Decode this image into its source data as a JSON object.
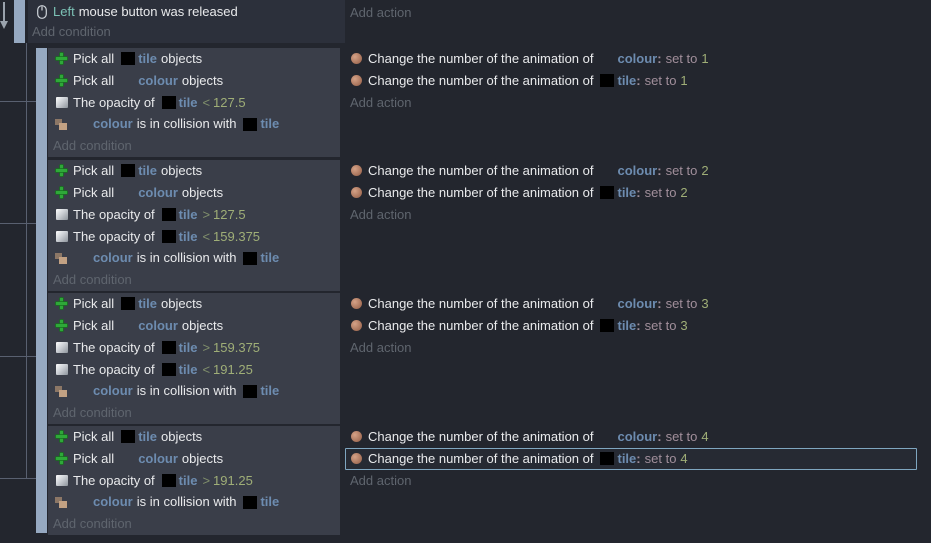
{
  "colors": {
    "page_bg": "#23262e",
    "condition_block_bg": "#3a3e49",
    "main_event_bg": "#2c303b",
    "indent_bar": "#96a9c1",
    "object_name": "#6d8cb0",
    "number": "#9fae77",
    "keyword": "#7cc2b6",
    "set_to": "#a18f9b",
    "muted_label": "#5f656e",
    "selection_border": "#7fa6c0"
  },
  "main_event": {
    "condition_row": {
      "segments": [
        {
          "t": "icon",
          "n": "mouse-icon"
        },
        {
          "t": "key",
          "v": "Left"
        },
        {
          "t": "tx",
          "v": "mouse button was released"
        }
      ]
    },
    "add_condition_label": "Add condition",
    "add_action_label": "Add action"
  },
  "groups": [
    {
      "add_condition_label": "Add condition",
      "add_action_label": "Add action",
      "conditions": [
        {
          "segments": [
            {
              "t": "icon",
              "n": "green-plus-icon"
            },
            {
              "t": "tx",
              "v": "Pick all"
            },
            {
              "t": "thumb"
            },
            {
              "t": "obj",
              "v": "tile"
            },
            {
              "t": "tx",
              "v": "objects"
            }
          ]
        },
        {
          "segments": [
            {
              "t": "icon",
              "n": "green-plus-icon"
            },
            {
              "t": "tx",
              "v": "Pick all"
            },
            {
              "t": "blank"
            },
            {
              "t": "obj",
              "v": "colour"
            },
            {
              "t": "tx",
              "v": "objects"
            }
          ]
        },
        {
          "segments": [
            {
              "t": "icon",
              "n": "opacity-icon"
            },
            {
              "t": "tx",
              "v": "The opacity of"
            },
            {
              "t": "thumb"
            },
            {
              "t": "obj",
              "v": "tile"
            },
            {
              "t": "op",
              "v": "<"
            },
            {
              "t": "num",
              "v": "127.5"
            }
          ]
        },
        {
          "segments": [
            {
              "t": "icon",
              "n": "collision-icon"
            },
            {
              "t": "blank"
            },
            {
              "t": "obj",
              "v": "colour"
            },
            {
              "t": "tx",
              "v": "is in collision with"
            },
            {
              "t": "thumb"
            },
            {
              "t": "obj",
              "v": "tile"
            }
          ]
        }
      ],
      "actions": [
        {
          "segments": [
            {
              "t": "icon",
              "n": "animation-icon"
            },
            {
              "t": "tx",
              "v": "Change the number of the animation of"
            },
            {
              "t": "blank"
            },
            {
              "t": "obj",
              "v": "colour"
            },
            {
              "t": "pn",
              "v": ":"
            },
            {
              "t": "set",
              "v": "set to"
            },
            {
              "t": "num",
              "v": "1"
            }
          ]
        },
        {
          "segments": [
            {
              "t": "icon",
              "n": "animation-icon"
            },
            {
              "t": "tx",
              "v": "Change the number of the animation of"
            },
            {
              "t": "thumb"
            },
            {
              "t": "obj",
              "v": "tile"
            },
            {
              "t": "pn",
              "v": ":"
            },
            {
              "t": "set",
              "v": "set to"
            },
            {
              "t": "num",
              "v": "1"
            }
          ]
        }
      ]
    },
    {
      "add_condition_label": "Add condition",
      "add_action_label": "Add action",
      "conditions": [
        {
          "segments": [
            {
              "t": "icon",
              "n": "green-plus-icon"
            },
            {
              "t": "tx",
              "v": "Pick all"
            },
            {
              "t": "thumb"
            },
            {
              "t": "obj",
              "v": "tile"
            },
            {
              "t": "tx",
              "v": "objects"
            }
          ]
        },
        {
          "segments": [
            {
              "t": "icon",
              "n": "green-plus-icon"
            },
            {
              "t": "tx",
              "v": "Pick all"
            },
            {
              "t": "blank"
            },
            {
              "t": "obj",
              "v": "colour"
            },
            {
              "t": "tx",
              "v": "objects"
            }
          ]
        },
        {
          "segments": [
            {
              "t": "icon",
              "n": "opacity-icon"
            },
            {
              "t": "tx",
              "v": "The opacity of"
            },
            {
              "t": "thumb"
            },
            {
              "t": "obj",
              "v": "tile"
            },
            {
              "t": "op",
              "v": ">"
            },
            {
              "t": "num",
              "v": "127.5"
            }
          ]
        },
        {
          "segments": [
            {
              "t": "icon",
              "n": "opacity-icon"
            },
            {
              "t": "tx",
              "v": "The opacity of"
            },
            {
              "t": "thumb"
            },
            {
              "t": "obj",
              "v": "tile"
            },
            {
              "t": "op",
              "v": "<"
            },
            {
              "t": "num",
              "v": "159.375"
            }
          ]
        },
        {
          "segments": [
            {
              "t": "icon",
              "n": "collision-icon"
            },
            {
              "t": "blank"
            },
            {
              "t": "obj",
              "v": "colour"
            },
            {
              "t": "tx",
              "v": "is in collision with"
            },
            {
              "t": "thumb"
            },
            {
              "t": "obj",
              "v": "tile"
            }
          ]
        }
      ],
      "actions": [
        {
          "segments": [
            {
              "t": "icon",
              "n": "animation-icon"
            },
            {
              "t": "tx",
              "v": "Change the number of the animation of"
            },
            {
              "t": "blank"
            },
            {
              "t": "obj",
              "v": "colour"
            },
            {
              "t": "pn",
              "v": ":"
            },
            {
              "t": "set",
              "v": "set to"
            },
            {
              "t": "num",
              "v": "2"
            }
          ]
        },
        {
          "segments": [
            {
              "t": "icon",
              "n": "animation-icon"
            },
            {
              "t": "tx",
              "v": "Change the number of the animation of"
            },
            {
              "t": "thumb"
            },
            {
              "t": "obj",
              "v": "tile"
            },
            {
              "t": "pn",
              "v": ":"
            },
            {
              "t": "set",
              "v": "set to"
            },
            {
              "t": "num",
              "v": "2"
            }
          ]
        }
      ]
    },
    {
      "add_condition_label": "Add condition",
      "add_action_label": "Add action",
      "conditions": [
        {
          "segments": [
            {
              "t": "icon",
              "n": "green-plus-icon"
            },
            {
              "t": "tx",
              "v": "Pick all"
            },
            {
              "t": "thumb"
            },
            {
              "t": "obj",
              "v": "tile"
            },
            {
              "t": "tx",
              "v": "objects"
            }
          ]
        },
        {
          "segments": [
            {
              "t": "icon",
              "n": "green-plus-icon"
            },
            {
              "t": "tx",
              "v": "Pick all"
            },
            {
              "t": "blank"
            },
            {
              "t": "obj",
              "v": "colour"
            },
            {
              "t": "tx",
              "v": "objects"
            }
          ]
        },
        {
          "segments": [
            {
              "t": "icon",
              "n": "opacity-icon"
            },
            {
              "t": "tx",
              "v": "The opacity of"
            },
            {
              "t": "thumb"
            },
            {
              "t": "obj",
              "v": "tile"
            },
            {
              "t": "op",
              "v": ">"
            },
            {
              "t": "num",
              "v": "159.375"
            }
          ]
        },
        {
          "segments": [
            {
              "t": "icon",
              "n": "opacity-icon"
            },
            {
              "t": "tx",
              "v": "The opacity of"
            },
            {
              "t": "thumb"
            },
            {
              "t": "obj",
              "v": "tile"
            },
            {
              "t": "op",
              "v": "<"
            },
            {
              "t": "num",
              "v": "191.25"
            }
          ]
        },
        {
          "segments": [
            {
              "t": "icon",
              "n": "collision-icon"
            },
            {
              "t": "blank"
            },
            {
              "t": "obj",
              "v": "colour"
            },
            {
              "t": "tx",
              "v": "is in collision with"
            },
            {
              "t": "thumb"
            },
            {
              "t": "obj",
              "v": "tile"
            }
          ]
        }
      ],
      "actions": [
        {
          "segments": [
            {
              "t": "icon",
              "n": "animation-icon"
            },
            {
              "t": "tx",
              "v": "Change the number of the animation of"
            },
            {
              "t": "blank"
            },
            {
              "t": "obj",
              "v": "colour"
            },
            {
              "t": "pn",
              "v": ":"
            },
            {
              "t": "set",
              "v": "set to"
            },
            {
              "t": "num",
              "v": "3"
            }
          ]
        },
        {
          "segments": [
            {
              "t": "icon",
              "n": "animation-icon"
            },
            {
              "t": "tx",
              "v": "Change the number of the animation of"
            },
            {
              "t": "thumb"
            },
            {
              "t": "obj",
              "v": "tile"
            },
            {
              "t": "pn",
              "v": ":"
            },
            {
              "t": "set",
              "v": "set to"
            },
            {
              "t": "num",
              "v": "3"
            }
          ]
        }
      ]
    },
    {
      "add_condition_label": "Add condition",
      "add_action_label": "Add action",
      "conditions": [
        {
          "segments": [
            {
              "t": "icon",
              "n": "green-plus-icon"
            },
            {
              "t": "tx",
              "v": "Pick all"
            },
            {
              "t": "thumb"
            },
            {
              "t": "obj",
              "v": "tile"
            },
            {
              "t": "tx",
              "v": "objects"
            }
          ]
        },
        {
          "segments": [
            {
              "t": "icon",
              "n": "green-plus-icon"
            },
            {
              "t": "tx",
              "v": "Pick all"
            },
            {
              "t": "blank"
            },
            {
              "t": "obj",
              "v": "colour"
            },
            {
              "t": "tx",
              "v": "objects"
            }
          ]
        },
        {
          "segments": [
            {
              "t": "icon",
              "n": "opacity-icon"
            },
            {
              "t": "tx",
              "v": "The opacity of"
            },
            {
              "t": "thumb"
            },
            {
              "t": "obj",
              "v": "tile"
            },
            {
              "t": "op",
              "v": ">"
            },
            {
              "t": "num",
              "v": "191.25"
            }
          ]
        },
        {
          "segments": [
            {
              "t": "icon",
              "n": "collision-icon"
            },
            {
              "t": "blank"
            },
            {
              "t": "obj",
              "v": "colour"
            },
            {
              "t": "tx",
              "v": "is in collision with"
            },
            {
              "t": "thumb"
            },
            {
              "t": "obj",
              "v": "tile"
            }
          ]
        }
      ],
      "actions": [
        {
          "segments": [
            {
              "t": "icon",
              "n": "animation-icon"
            },
            {
              "t": "tx",
              "v": "Change the number of the animation of"
            },
            {
              "t": "blank"
            },
            {
              "t": "obj",
              "v": "colour"
            },
            {
              "t": "pn",
              "v": ":"
            },
            {
              "t": "set",
              "v": "set to"
            },
            {
              "t": "num",
              "v": "4"
            }
          ]
        },
        {
          "segments": [
            {
              "t": "icon",
              "n": "animation-icon"
            },
            {
              "t": "tx",
              "v": "Change the number of the animation of"
            },
            {
              "t": "thumb"
            },
            {
              "t": "obj",
              "v": "tile"
            },
            {
              "t": "pn",
              "v": ":"
            },
            {
              "t": "set",
              "v": "set to"
            },
            {
              "t": "num",
              "v": "4"
            }
          ],
          "selected": true
        }
      ]
    }
  ]
}
